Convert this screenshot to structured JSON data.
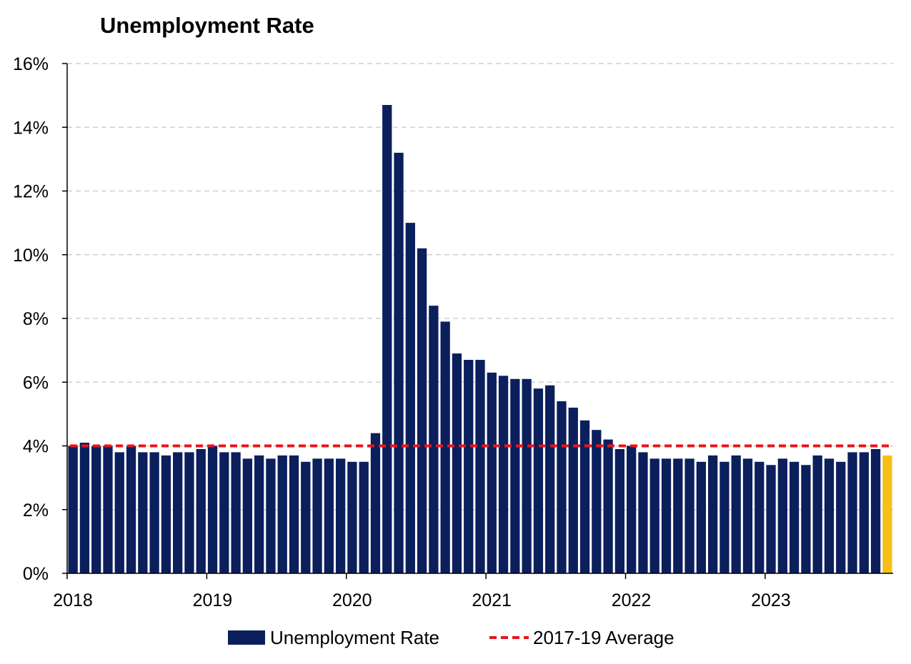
{
  "chart_data": {
    "type": "bar",
    "title": "Unemployment Rate",
    "xlabel": "",
    "ylabel": "",
    "ylim": [
      0,
      16
    ],
    "y_tick_values": [
      0,
      2,
      4,
      6,
      8,
      10,
      12,
      14,
      16
    ],
    "y_tick_labels": [
      "0%",
      "2%",
      "4%",
      "6%",
      "8%",
      "10%",
      "12%",
      "14%",
      "16%"
    ],
    "x_tick_labels": [
      "2018",
      "2019",
      "2020",
      "2021",
      "2022",
      "2023"
    ],
    "months_per_year": 12,
    "grid": true,
    "legend": "bottom",
    "start": "2018-01",
    "series": [
      {
        "name": "Unemployment Rate",
        "type": "bar",
        "color": "#0b1f5c",
        "highlight_color": "#f7bf16",
        "highlight_last": true,
        "values": [
          4.0,
          4.1,
          4.0,
          4.0,
          3.8,
          4.0,
          3.8,
          3.8,
          3.7,
          3.8,
          3.8,
          3.9,
          4.0,
          3.8,
          3.8,
          3.6,
          3.7,
          3.6,
          3.7,
          3.7,
          3.5,
          3.6,
          3.6,
          3.6,
          3.5,
          3.5,
          4.4,
          14.7,
          13.2,
          11.0,
          10.2,
          8.4,
          7.9,
          6.9,
          6.7,
          6.7,
          6.3,
          6.2,
          6.1,
          6.1,
          5.8,
          5.9,
          5.4,
          5.2,
          4.8,
          4.5,
          4.2,
          3.9,
          4.0,
          3.8,
          3.6,
          3.6,
          3.6,
          3.6,
          3.5,
          3.7,
          3.5,
          3.7,
          3.6,
          3.5,
          3.4,
          3.6,
          3.5,
          3.4,
          3.7,
          3.6,
          3.5,
          3.8,
          3.8,
          3.9,
          3.7
        ]
      },
      {
        "name": "2017-19 Average",
        "type": "line",
        "style": "dashed",
        "color": "#e8141b",
        "value": 4.0
      }
    ]
  }
}
